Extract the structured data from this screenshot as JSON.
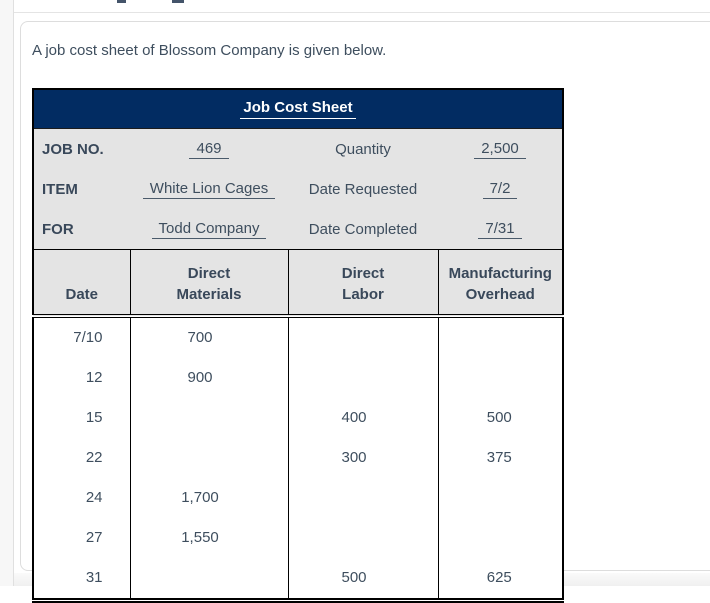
{
  "page": {
    "intro_text": "A job cost sheet of Blossom Company is given below."
  },
  "colors": {
    "navy_header": "#022c62",
    "text_slate": "#3e4e5e",
    "table_gray": "#e4e4e4"
  },
  "job_cost_sheet": {
    "title": "Job Cost Sheet",
    "info_rows": [
      {
        "label": "JOB NO.",
        "value": "469",
        "label2": "Quantity",
        "value2": "2,500"
      },
      {
        "label": "ITEM",
        "value": "White Lion Cages",
        "label2": "Date Requested",
        "value2": "7/2"
      },
      {
        "label": "FOR",
        "value": "Todd Company",
        "label2": "Date Completed",
        "value2": "7/31"
      }
    ],
    "column_headers": [
      {
        "line1": "",
        "line2": "Date"
      },
      {
        "line1": "Direct",
        "line2": "Materials"
      },
      {
        "line1": "Direct",
        "line2": "Labor"
      },
      {
        "line1": "Manufacturing",
        "line2": "Overhead"
      }
    ],
    "rows": [
      {
        "date": "7/10",
        "materials": "700",
        "labor": "",
        "overhead": ""
      },
      {
        "date": "12",
        "materials": "900",
        "labor": "",
        "overhead": ""
      },
      {
        "date": "15",
        "materials": "",
        "labor": "400",
        "overhead": "500"
      },
      {
        "date": "22",
        "materials": "",
        "labor": "300",
        "overhead": "375"
      },
      {
        "date": "24",
        "materials": "1,700",
        "labor": "",
        "overhead": ""
      },
      {
        "date": "27",
        "materials": "1,550",
        "labor": "",
        "overhead": ""
      },
      {
        "date": "31",
        "materials": "",
        "labor": "500",
        "overhead": "625"
      }
    ]
  }
}
